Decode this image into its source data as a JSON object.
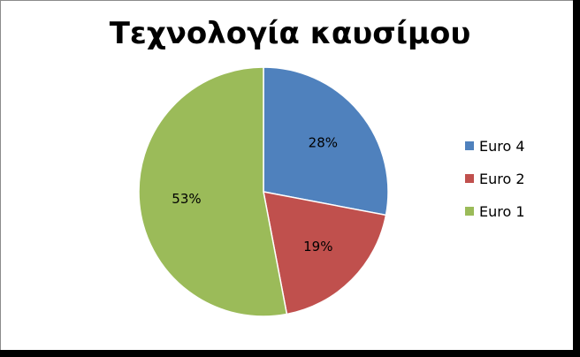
{
  "chart_data": {
    "type": "pie",
    "title": "Τεχνολογία καυσίμου",
    "legend_position": "right",
    "slices": [
      {
        "name": "Euro 4",
        "value": 28,
        "label": "28%",
        "color": "#4F81BD"
      },
      {
        "name": "Euro 2",
        "value": 19,
        "label": "19%",
        "color": "#C0504D"
      },
      {
        "name": "Euro 1",
        "value": 53,
        "label": "53%",
        "color": "#9BBB59"
      }
    ]
  }
}
